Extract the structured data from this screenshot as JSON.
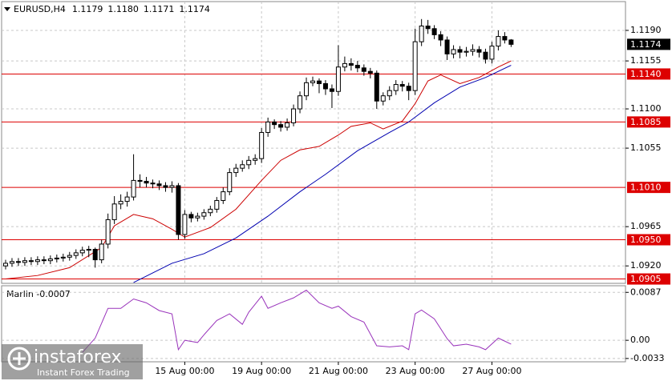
{
  "chart_data": [
    {
      "type": "candlestick",
      "title": "EURUSD,H4",
      "ohlc_labels": [
        "1.1179",
        "1.1180",
        "1.1171",
        "1.1174"
      ],
      "categories": [
        null,
        null,
        null,
        null,
        null,
        null,
        null,
        null,
        null,
        null,
        null,
        null,
        null,
        null,
        null,
        null,
        null,
        null,
        null,
        null,
        null,
        null,
        null,
        null,
        null,
        null,
        null,
        null,
        null,
        null,
        null,
        null,
        null,
        null,
        null,
        null,
        null,
        null,
        null,
        null,
        null,
        null,
        null,
        null,
        null,
        null,
        null,
        null,
        null,
        null,
        null,
        null,
        null,
        null,
        null,
        null,
        null,
        null,
        null,
        null,
        null,
        null,
        null,
        null,
        null,
        null,
        null,
        null,
        null,
        null,
        null,
        null,
        null,
        null,
        null,
        null,
        null,
        null,
        null,
        null
      ],
      "xlim": [
        -0.625,
        96.875
      ],
      "xticks": [
        {
          "value": 28,
          "label": "15 Aug 00:00"
        },
        {
          "value": 40,
          "label": "19 Aug 00:00"
        },
        {
          "value": 52,
          "label": "21 Aug 00:00"
        },
        {
          "value": 64,
          "label": "23 Aug 00:00"
        },
        {
          "value": 76,
          "label": "27 Aug 00:00"
        }
      ],
      "open": [
        1.092,
        1.0923,
        1.0925,
        1.0924,
        1.0926,
        1.0925,
        1.0927,
        1.0926,
        1.0928,
        1.0929,
        1.093,
        1.0932,
        1.0935,
        1.0938,
        1.0939,
        1.0927,
        1.0945,
        1.0973,
        1.0991,
        1.0994,
        1.0999,
        1.1018,
        1.1017,
        1.1015,
        1.1014,
        1.1012,
        1.101,
        1.1012,
        1.0956,
        1.0979,
        1.0975,
        1.0977,
        1.0981,
        1.0985,
        1.0995,
        1.1005,
        1.1027,
        1.1032,
        1.1036,
        1.1041,
        1.1043,
        1.1073,
        1.1085,
        1.1082,
        1.1079,
        1.1084,
        1.11,
        1.1115,
        1.113,
        1.1132,
        1.1129,
        1.1123,
        1.112,
        1.1148,
        1.1152,
        1.115,
        1.1147,
        1.1143,
        1.1141,
        1.1109,
        1.1115,
        1.1121,
        1.1128,
        1.1126,
        1.1121,
        1.1177,
        1.1195,
        1.1192,
        1.1185,
        1.1179,
        1.1163,
        1.1168,
        1.1165,
        1.1166,
        1.1168,
        1.1165,
        1.1157,
        1.1172,
        1.1183,
        1.1179
      ],
      "high": [
        1.0927,
        1.0929,
        1.0929,
        1.093,
        1.093,
        1.0931,
        1.0931,
        1.0932,
        1.0933,
        1.0934,
        1.0936,
        1.0939,
        1.0942,
        1.0943,
        1.0941,
        1.095,
        1.098,
        1.1,
        1.1002,
        1.1005,
        1.1048,
        1.1025,
        1.1022,
        1.1019,
        1.1018,
        1.1016,
        1.1017,
        1.1015,
        1.0984,
        1.0982,
        1.0981,
        1.0985,
        1.0989,
        1.0999,
        1.101,
        1.1032,
        1.1037,
        1.1041,
        1.1046,
        1.1048,
        1.1078,
        1.109,
        1.1088,
        1.1086,
        1.1089,
        1.1105,
        1.112,
        1.1136,
        1.1137,
        1.1135,
        1.1133,
        1.1128,
        1.1173,
        1.116,
        1.1158,
        1.1155,
        1.1151,
        1.1147,
        1.1144,
        1.1119,
        1.1126,
        1.1133,
        1.1132,
        1.113,
        1.1192,
        1.1203,
        1.1202,
        1.1196,
        1.1189,
        1.1183,
        1.1173,
        1.1172,
        1.1171,
        1.1174,
        1.1172,
        1.1169,
        1.1177,
        1.119,
        1.1188,
        1.118
      ],
      "low": [
        1.0916,
        1.0919,
        1.092,
        1.092,
        1.0921,
        1.0921,
        1.0922,
        1.0922,
        1.0924,
        1.0925,
        1.0926,
        1.0928,
        1.0931,
        1.093,
        1.0918,
        1.0923,
        1.094,
        1.0968,
        1.0985,
        1.0988,
        1.0995,
        1.101,
        1.101,
        1.1009,
        1.1007,
        1.1005,
        1.1004,
        1.095,
        1.0951,
        1.097,
        1.0971,
        1.0973,
        1.0977,
        1.0981,
        1.0991,
        1.1001,
        1.1022,
        1.1028,
        1.1031,
        1.1036,
        1.1038,
        1.1068,
        1.1077,
        1.1074,
        1.1075,
        1.108,
        1.1095,
        1.111,
        1.1126,
        1.1118,
        1.1116,
        1.1101,
        1.1115,
        1.1143,
        1.1144,
        1.1142,
        1.1138,
        1.1135,
        1.11,
        1.1104,
        1.111,
        1.1116,
        1.112,
        1.111,
        1.1116,
        1.1172,
        1.1186,
        1.118,
        1.1172,
        1.1156,
        1.1158,
        1.1158,
        1.116,
        1.1161,
        1.1159,
        1.1152,
        1.1152,
        1.1167,
        1.1175,
        1.1171
      ],
      "close": [
        1.0923,
        1.0925,
        1.0924,
        1.0926,
        1.0925,
        1.0927,
        1.0926,
        1.0928,
        1.0929,
        1.093,
        1.0932,
        1.0935,
        1.0938,
        1.0939,
        1.0927,
        1.0945,
        1.0973,
        1.0991,
        1.0994,
        1.0999,
        1.1018,
        1.1017,
        1.1015,
        1.1014,
        1.1012,
        1.101,
        1.1012,
        1.0956,
        1.0979,
        1.0975,
        1.0977,
        1.0981,
        1.0985,
        1.0995,
        1.1005,
        1.1027,
        1.1032,
        1.1036,
        1.1041,
        1.1043,
        1.1073,
        1.1085,
        1.1082,
        1.1079,
        1.1084,
        1.11,
        1.1115,
        1.113,
        1.1132,
        1.1129,
        1.1123,
        1.112,
        1.1148,
        1.1152,
        1.115,
        1.1147,
        1.1143,
        1.1141,
        1.1109,
        1.1115,
        1.1121,
        1.1128,
        1.1126,
        1.1121,
        1.1177,
        1.1195,
        1.1192,
        1.1185,
        1.1179,
        1.1163,
        1.1168,
        1.1165,
        1.1166,
        1.1168,
        1.1165,
        1.1157,
        1.1172,
        1.1183,
        1.1179,
        1.1174
      ],
      "up_color": "#ffffff",
      "down_color": "#000000",
      "ylim": [
        1.09,
        1.1223
      ],
      "yticks": [
        {
          "value": 1.119,
          "label": "1.1190"
        },
        {
          "value": 1.1155,
          "label": "1.1155"
        },
        {
          "value": 1.11,
          "label": "1.1100"
        },
        {
          "value": 1.1055,
          "label": "1.1055"
        },
        {
          "value": 1.0965,
          "label": "1.0965"
        },
        {
          "value": 1.092,
          "label": "1.0920"
        }
      ],
      "grid": true,
      "series": [
        {
          "color": "#cc0000",
          "x": [
            0,
            5,
            10,
            15,
            17,
            20,
            23,
            26,
            28,
            32,
            36,
            40,
            43,
            46,
            49,
            52,
            54,
            57,
            59,
            62,
            64,
            66,
            68,
            71,
            74,
            77,
            79
          ],
          "values": [
            1.0905,
            1.0909,
            1.0918,
            1.0941,
            1.0966,
            1.0979,
            1.0974,
            1.0962,
            1.0953,
            1.0964,
            1.0985,
            1.1018,
            1.1041,
            1.1053,
            1.1057,
            1.107,
            1.108,
            1.1084,
            1.1077,
            1.1086,
            1.1106,
            1.1132,
            1.1139,
            1.1129,
            1.1136,
            1.1148,
            1.1155
          ]
        },
        {
          "color": "#0000b0",
          "x": [
            20,
            26,
            31,
            36,
            41,
            46,
            50,
            55,
            60,
            63,
            67,
            71,
            75,
            79
          ],
          "values": [
            1.0901,
            1.0923,
            1.0934,
            1.0952,
            1.0977,
            1.1005,
            1.1025,
            1.1052,
            1.1073,
            1.1085,
            1.1107,
            1.1125,
            1.1136,
            1.115
          ]
        }
      ],
      "levels": [
        {
          "value": 1.114,
          "label": "1.1140"
        },
        {
          "value": 1.1085,
          "label": "1.1085"
        },
        {
          "value": 1.101,
          "label": "1.1010"
        },
        {
          "value": 1.095,
          "label": "1.0950"
        },
        {
          "value": 1.0905,
          "label": "1.0905"
        }
      ],
      "level_color": "#dd0000",
      "last_price": {
        "value": 1.1174,
        "label": "1.1174"
      }
    },
    {
      "type": "line",
      "title": "Marlin -0.0007",
      "xlim": [
        -0.625,
        96.875
      ],
      "ylim": [
        -0.0039,
        0.0099
      ],
      "yticks": [
        {
          "value": 0.0087,
          "label": "0.0087"
        },
        {
          "value": 0,
          "label": "0.00"
        },
        {
          "value": -0.0033,
          "label": "-0.0033"
        }
      ],
      "grid": true,
      "series": [
        {
          "color": "#9933bb",
          "x": [
            12,
            14,
            16,
            18,
            20,
            22,
            24,
            26,
            27,
            28,
            30,
            31,
            33,
            35,
            37,
            38,
            40,
            41,
            43,
            45,
            47,
            49,
            51,
            52,
            54,
            56,
            58,
            60,
            62,
            63,
            64,
            65,
            67,
            69,
            70,
            72,
            74,
            75,
            77,
            79
          ],
          "values": [
            -0.0022,
            0.0004,
            0.0058,
            0.0058,
            0.0075,
            0.0068,
            0.0054,
            0.0048,
            -0.0017,
            0.0,
            -0.0004,
            0.001,
            0.0036,
            0.0048,
            0.0029,
            0.0051,
            0.008,
            0.0058,
            0.0068,
            0.0077,
            0.0091,
            0.0068,
            0.0058,
            0.0062,
            0.0043,
            0.0033,
            -0.001,
            -0.0012,
            -0.001,
            -0.0017,
            0.0048,
            0.0055,
            0.0039,
            0.0003,
            -0.001,
            -0.0007,
            -0.0012,
            -0.0017,
            0.0004,
            -0.0007
          ]
        }
      ]
    }
  ],
  "watermark": {
    "brand": "instaforex",
    "tagline": "Instant Forex Trading"
  }
}
